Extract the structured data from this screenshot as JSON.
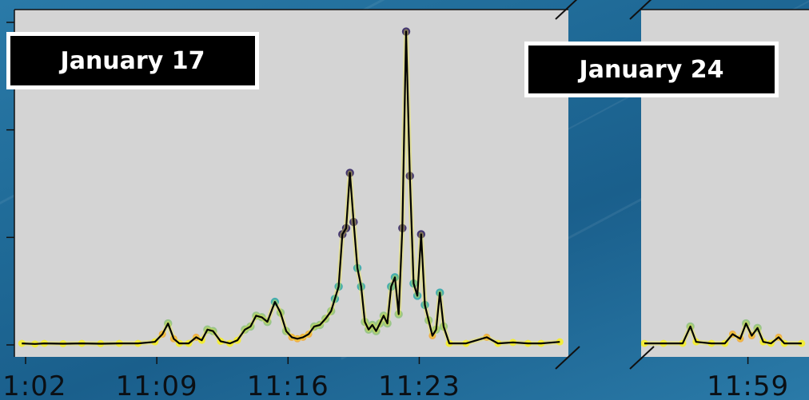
{
  "chart_data": [
    {
      "type": "line",
      "title": "January 17",
      "x_ticks": [
        "11:02",
        "11:09",
        "11:16",
        "11:23"
      ],
      "x_tick_minutes": [
        0,
        7,
        14,
        21
      ],
      "xlim_minutes": [
        -0.2,
        28.5
      ],
      "ylim": [
        0,
        10.5
      ],
      "y_ticks": [
        0,
        3.5,
        7,
        10.5
      ],
      "grid": false,
      "series": [
        {
          "values": [
            [
              -0.2,
              0.05
            ],
            [
              0.5,
              0.03
            ],
            [
              1,
              0.05
            ],
            [
              2,
              0.04
            ],
            [
              3,
              0.05
            ],
            [
              4,
              0.04
            ],
            [
              5,
              0.05
            ],
            [
              6,
              0.05
            ],
            [
              6.9,
              0.1
            ],
            [
              7.3,
              0.35
            ],
            [
              7.6,
              0.7
            ],
            [
              7.9,
              0.2
            ],
            [
              8.2,
              0.05
            ],
            [
              8.7,
              0.05
            ],
            [
              9.1,
              0.25
            ],
            [
              9.4,
              0.15
            ],
            [
              9.7,
              0.5
            ],
            [
              10,
              0.45
            ],
            [
              10.4,
              0.12
            ],
            [
              10.9,
              0.05
            ],
            [
              11.3,
              0.15
            ],
            [
              11.7,
              0.5
            ],
            [
              12,
              0.6
            ],
            [
              12.3,
              0.95
            ],
            [
              12.6,
              0.9
            ],
            [
              12.9,
              0.75
            ],
            [
              13.3,
              1.4
            ],
            [
              13.6,
              1.05
            ],
            [
              13.9,
              0.45
            ],
            [
              14.2,
              0.25
            ],
            [
              14.5,
              0.2
            ],
            [
              14.8,
              0.25
            ],
            [
              15.1,
              0.35
            ],
            [
              15.4,
              0.6
            ],
            [
              15.7,
              0.65
            ],
            [
              16,
              0.85
            ],
            [
              16.3,
              1.1
            ],
            [
              16.5,
              1.5
            ],
            [
              16.7,
              1.9
            ],
            [
              16.9,
              3.6
            ],
            [
              17.1,
              3.8
            ],
            [
              17.3,
              5.6
            ],
            [
              17.5,
              4.0
            ],
            [
              17.7,
              2.5
            ],
            [
              17.9,
              1.9
            ],
            [
              18.1,
              0.75
            ],
            [
              18.3,
              0.5
            ],
            [
              18.5,
              0.65
            ],
            [
              18.7,
              0.45
            ],
            [
              18.9,
              0.7
            ],
            [
              19.1,
              0.95
            ],
            [
              19.3,
              0.7
            ],
            [
              19.5,
              1.9
            ],
            [
              19.7,
              2.2
            ],
            [
              19.9,
              1.0
            ],
            [
              20.1,
              3.8
            ],
            [
              20.3,
              10.2
            ],
            [
              20.5,
              5.5
            ],
            [
              20.7,
              2.0
            ],
            [
              20.9,
              1.6
            ],
            [
              21.1,
              3.6
            ],
            [
              21.3,
              1.3
            ],
            [
              21.5,
              0.8
            ],
            [
              21.7,
              0.3
            ],
            [
              21.9,
              0.5
            ],
            [
              22.1,
              1.7
            ],
            [
              22.3,
              0.6
            ],
            [
              22.6,
              0.05
            ],
            [
              23.5,
              0.05
            ],
            [
              24.6,
              0.25
            ],
            [
              25.2,
              0.05
            ],
            [
              26,
              0.08
            ],
            [
              26.8,
              0.05
            ],
            [
              27.5,
              0.05
            ],
            [
              28.5,
              0.1
            ]
          ]
        }
      ]
    },
    {
      "type": "line",
      "title": "January 24",
      "x_ticks": [
        "11:59"
      ],
      "ylim": [
        0,
        10.5
      ],
      "grid": false,
      "series": [
        {
          "values": [
            [
              0,
              0.05
            ],
            [
              1,
              0.05
            ],
            [
              2,
              0.05
            ],
            [
              2.4,
              0.6
            ],
            [
              2.7,
              0.1
            ],
            [
              3.5,
              0.05
            ],
            [
              4.2,
              0.05
            ],
            [
              4.6,
              0.35
            ],
            [
              5,
              0.2
            ],
            [
              5.3,
              0.7
            ],
            [
              5.6,
              0.3
            ],
            [
              5.9,
              0.55
            ],
            [
              6.2,
              0.1
            ],
            [
              6.6,
              0.05
            ],
            [
              7,
              0.25
            ],
            [
              7.3,
              0.05
            ],
            [
              8.2,
              0.05
            ]
          ]
        }
      ]
    }
  ]
}
